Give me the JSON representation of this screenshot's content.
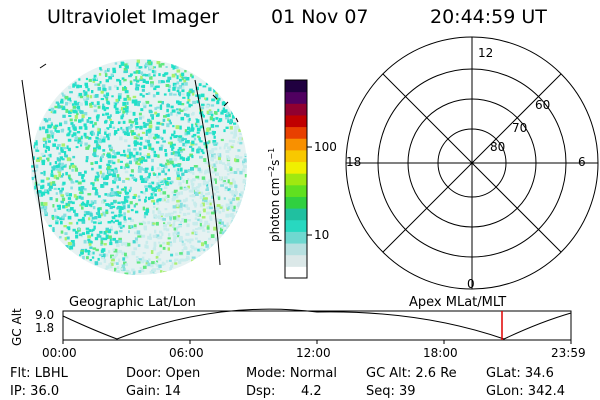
{
  "header": {
    "title": "Ultraviolet Imager",
    "date": "01 Nov 07",
    "time": "20:44:59 UT"
  },
  "colorbar": {
    "unit_label": "photon cm^-2 s^-1",
    "unit_text": "photon cm",
    "exp1": "−2",
    "s": "s",
    "exp2": "−1",
    "ticks": [
      {
        "value": 100,
        "label": "100"
      },
      {
        "value": 10,
        "label": "10"
      }
    ],
    "scale": "log",
    "colors": [
      "#ffffff",
      "#dbe8e8",
      "#b7e0e0",
      "#6fd8d0",
      "#28d8c0",
      "#20c0a0",
      "#30d040",
      "#60e020",
      "#a0e810",
      "#f0f000",
      "#f8c800",
      "#f89000",
      "#e84000",
      "#c00000",
      "#900030",
      "#500060",
      "#200040"
    ]
  },
  "image_left": {
    "label": "Geographic Lat/Lon",
    "speckle_colors": [
      "#20e0c8",
      "#40d8d0",
      "#88e0e0",
      "#c8ecec",
      "#a8f070",
      "#60e880"
    ]
  },
  "polar": {
    "label": "Apex MLat/MLT",
    "mlt_labels": [
      {
        "value": "12",
        "pos": "top"
      },
      {
        "value": "6",
        "pos": "right"
      },
      {
        "value": "0",
        "pos": "bottom"
      },
      {
        "value": "18",
        "pos": "left"
      }
    ],
    "lat_labels": [
      "60",
      "70",
      "80"
    ]
  },
  "altitude_plot": {
    "ylabel": "GC Alt",
    "yticks": [
      "9.0",
      "1.8"
    ],
    "xticks": [
      "00:00",
      "06:00",
      "12:00",
      "18:00",
      "23:59"
    ],
    "marker_color": "#e00000"
  },
  "info": {
    "filter": "Flt: LBHL",
    "ip": "IP: 36.0",
    "door": "Door: Open",
    "gain": "Gain: 14",
    "mode": "Mode: Normal",
    "dsp_label": "Dsp:",
    "dsp_value": "4.2",
    "gcalt": "GC Alt: 2.6 Re",
    "seq": "Seq: 39",
    "glat": "GLat: 34.6",
    "glon": "GLon: 342.4"
  }
}
